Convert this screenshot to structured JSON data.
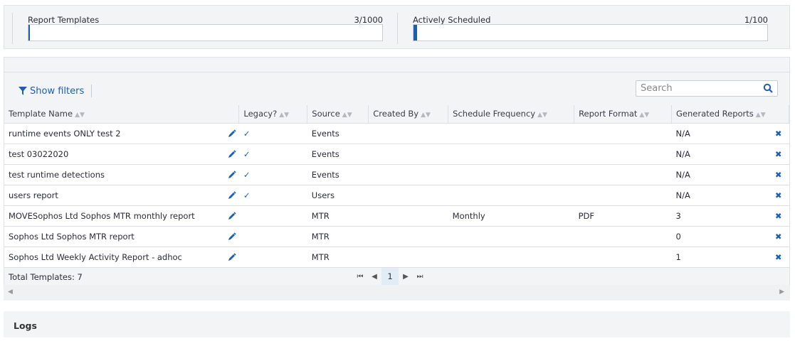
{
  "meters": [
    {
      "label": "Report Templates",
      "count": "3/1000",
      "fraction": 0.003
    },
    {
      "label": "Actively Scheduled",
      "count": "1/100",
      "fraction": 0.01
    }
  ],
  "toolbar": {
    "show_filters": "Show filters",
    "search_placeholder": "Search"
  },
  "table": {
    "columns": [
      "Template Name",
      "Legacy?",
      "Source",
      "Created By",
      "Schedule Frequency",
      "Report Format",
      "Generated Reports"
    ],
    "rows": [
      {
        "name": "runtime events ONLY test 2",
        "legacy": "✓",
        "source": "Events",
        "created_by": "",
        "frequency": "",
        "format": "",
        "generated": "N/A"
      },
      {
        "name": "test 03022020",
        "legacy": "✓",
        "source": "Events",
        "created_by": "",
        "frequency": "",
        "format": "",
        "generated": "N/A"
      },
      {
        "name": "test runtime detections",
        "legacy": "✓",
        "source": "Events",
        "created_by": "",
        "frequency": "",
        "format": "",
        "generated": "N/A"
      },
      {
        "name": "users report",
        "legacy": "✓",
        "source": "Users",
        "created_by": "",
        "frequency": "",
        "format": "",
        "generated": "N/A"
      },
      {
        "name": "MOVESophos Ltd Sophos MTR monthly report",
        "legacy": "",
        "source": "MTR",
        "created_by": "",
        "frequency": "Monthly",
        "format": "PDF",
        "generated": "3"
      },
      {
        "name": "Sophos Ltd Sophos MTR report",
        "legacy": "",
        "source": "MTR",
        "created_by": "",
        "frequency": "",
        "format": "",
        "generated": "0"
      },
      {
        "name": "Sophos Ltd Weekly Activity Report - adhoc",
        "legacy": "",
        "source": "MTR",
        "created_by": "",
        "frequency": "",
        "format": "",
        "generated": "1"
      }
    ],
    "total": "Total Templates: 7",
    "page": "1"
  },
  "logs": {
    "title": "Logs"
  },
  "colors": {
    "accent": "#1b5fb5",
    "panel": "#f3f4f6"
  }
}
